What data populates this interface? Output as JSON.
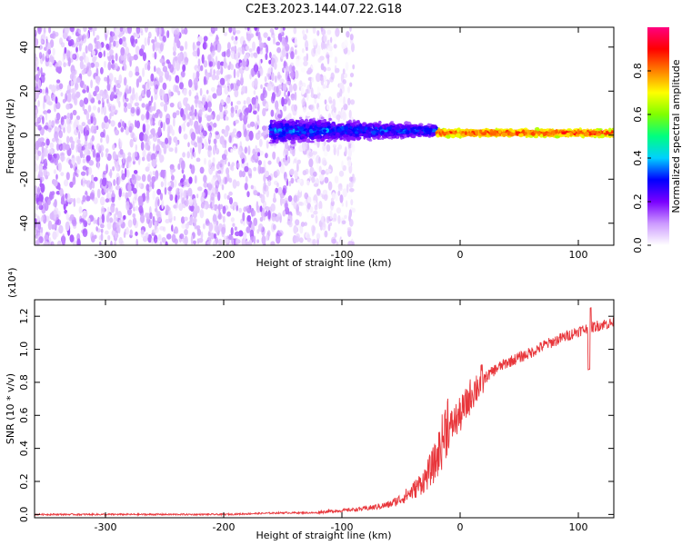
{
  "title": "C2E3.2023.144.07.22.G18",
  "chart_data": [
    {
      "type": "heatmap",
      "xlabel": "Height of straight line (km)",
      "ylabel": "Frequency (Hz)",
      "xlim": [
        -360,
        130
      ],
      "ylim": [
        -50,
        49
      ],
      "xticks": [
        -300,
        -200,
        -100,
        0,
        100
      ],
      "yticks": [
        -40,
        -20,
        0,
        20,
        40
      ],
      "colorbar": {
        "label": "Normalized spectral amplitude",
        "range": [
          0,
          1
        ],
        "ticks": [
          0.0,
          0.2,
          0.4,
          0.6,
          0.8
        ],
        "colors": [
          "#ffffff",
          "#cc99ff",
          "#7a00ff",
          "#0000ff",
          "#00d0ff",
          "#00ff80",
          "#80ff00",
          "#ffff00",
          "#ff8000",
          "#ff0000",
          "#ff0080"
        ]
      },
      "features": [
        {
          "x_range": [
            -360,
            -140
          ],
          "freq_range": [
            -50,
            49
          ],
          "amplitude_range": [
            0.05,
            0.15
          ]
        },
        {
          "x_range": [
            -140,
            -90
          ],
          "freq_range": [
            -50,
            49
          ],
          "amplitude_range": [
            0.0,
            0.08
          ]
        },
        {
          "x_range": [
            -160,
            -20
          ],
          "freq_center": 2,
          "freq_halfwidth": 8,
          "amplitude_range": [
            0.1,
            0.4
          ]
        },
        {
          "x_range": [
            -20,
            130
          ],
          "freq_center": 1,
          "freq_halfwidth": 2,
          "amplitude_range": [
            0.6,
            0.95
          ]
        }
      ]
    },
    {
      "type": "line",
      "xlabel": "Height of straight line (km)",
      "ylabel": "SNR (10 * v/v)",
      "scale_label": "(x10⁴)",
      "xlim": [
        -360,
        130
      ],
      "ylim": [
        -0.02,
        1.3
      ],
      "xticks": [
        -300,
        -200,
        -100,
        0,
        100
      ],
      "yticks": [
        0.0,
        0.2,
        0.4,
        0.6,
        0.8,
        1.0,
        1.2
      ],
      "series": [
        {
          "color": "#e8363b",
          "x": [
            -360,
            -300,
            -200,
            -150,
            -120,
            -100,
            -80,
            -60,
            -50,
            -40,
            -30,
            -20,
            -15,
            -10,
            -5,
            0,
            5,
            10,
            20,
            30,
            40,
            50,
            60,
            70,
            80,
            90,
            100,
            110,
            115,
            120,
            130
          ],
          "y": [
            0.0,
            0.0,
            0.0,
            0.01,
            0.01,
            0.02,
            0.03,
            0.05,
            0.08,
            0.12,
            0.18,
            0.28,
            0.38,
            0.5,
            0.56,
            0.6,
            0.66,
            0.74,
            0.82,
            0.88,
            0.92,
            0.95,
            0.98,
            1.02,
            1.05,
            1.08,
            1.11,
            1.13,
            1.14,
            1.15,
            1.16
          ]
        }
      ]
    }
  ]
}
